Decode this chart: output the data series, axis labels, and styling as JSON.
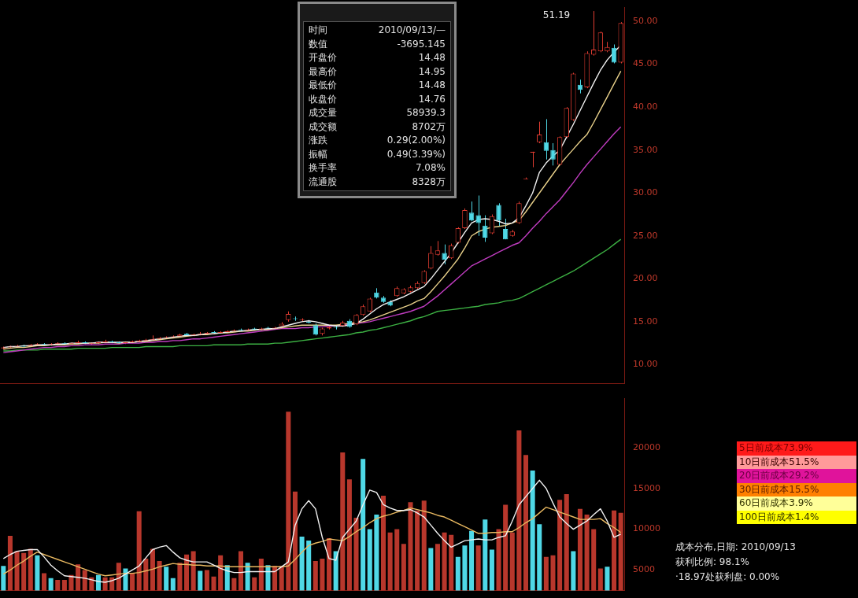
{
  "chart_data": [
    {
      "type": "candlestick",
      "categories": [
        null,
        null,
        null,
        null,
        null,
        null,
        null,
        null,
        null,
        null,
        null,
        null,
        null,
        null,
        null,
        null,
        null,
        null,
        null,
        null,
        null,
        null,
        null,
        null,
        null,
        null,
        null,
        null,
        null,
        null,
        null,
        null,
        null,
        null,
        null,
        null,
        null,
        null,
        null,
        null,
        null,
        null,
        null,
        null,
        null,
        null,
        null,
        null,
        null,
        null,
        null,
        null,
        null,
        null,
        null,
        null,
        null,
        null,
        null,
        null,
        null,
        null,
        null,
        null,
        null,
        null,
        null,
        null,
        null,
        null,
        null,
        null,
        null,
        null,
        null,
        null,
        null,
        null,
        null,
        null,
        null,
        null,
        null,
        null,
        null,
        null,
        null,
        null,
        null,
        null,
        null,
        null
      ],
      "ohlc": [
        [
          11.9,
          12.1,
          11.8,
          12.0
        ],
        [
          12.0,
          12.2,
          11.9,
          12.1
        ],
        [
          12.1,
          12.3,
          12.0,
          12.2
        ],
        [
          12.2,
          12.3,
          12.0,
          12.1
        ],
        [
          12.2,
          12.4,
          12.1,
          12.3
        ],
        [
          12.3,
          12.5,
          12.2,
          12.4
        ],
        [
          12.4,
          12.5,
          12.2,
          12.3
        ],
        [
          12.3,
          12.5,
          12.2,
          12.4
        ],
        [
          12.4,
          12.6,
          12.3,
          12.5
        ],
        [
          12.5,
          12.6,
          12.3,
          12.4
        ],
        [
          12.4,
          12.6,
          12.3,
          12.5
        ],
        [
          12.5,
          12.8,
          12.4,
          12.6
        ],
        [
          12.6,
          12.7,
          12.4,
          12.5
        ],
        [
          12.4,
          12.6,
          12.3,
          12.5
        ],
        [
          12.5,
          12.7,
          12.4,
          12.6
        ],
        [
          12.6,
          12.9,
          12.5,
          12.7
        ],
        [
          12.7,
          12.8,
          12.5,
          12.6
        ],
        [
          12.6,
          12.7,
          12.4,
          12.5
        ],
        [
          12.5,
          12.7,
          12.4,
          12.6
        ],
        [
          12.6,
          12.8,
          12.5,
          12.7
        ],
        [
          12.7,
          12.9,
          12.6,
          12.8
        ],
        [
          12.8,
          13.0,
          12.7,
          12.9
        ],
        [
          12.9,
          13.4,
          12.8,
          13.0
        ],
        [
          13.0,
          13.2,
          12.9,
          13.1
        ],
        [
          13.1,
          13.3,
          13.0,
          13.2
        ],
        [
          13.2,
          13.4,
          13.1,
          13.3
        ],
        [
          13.3,
          13.6,
          13.2,
          13.5
        ],
        [
          13.6,
          13.7,
          13.3,
          13.4
        ],
        [
          13.4,
          13.6,
          13.3,
          13.5
        ],
        [
          13.5,
          13.8,
          13.4,
          13.6
        ],
        [
          13.6,
          13.8,
          13.5,
          13.7
        ],
        [
          13.8,
          13.9,
          13.6,
          13.7
        ],
        [
          13.7,
          13.9,
          13.6,
          13.8
        ],
        [
          13.8,
          14.0,
          13.7,
          13.9
        ],
        [
          13.9,
          14.1,
          13.8,
          14.0
        ],
        [
          14.1,
          14.2,
          13.9,
          14.0
        ],
        [
          14.0,
          14.2,
          13.9,
          14.1
        ],
        [
          14.2,
          14.3,
          14.0,
          14.1
        ],
        [
          14.1,
          14.3,
          14.0,
          14.2
        ],
        [
          14.3,
          14.4,
          14.1,
          14.2
        ],
        [
          14.2,
          14.4,
          14.1,
          14.3
        ],
        [
          14.48,
          14.95,
          14.48,
          14.76
        ],
        [
          15.2,
          16.2,
          15.0,
          15.9
        ],
        [
          15.4,
          15.6,
          15.1,
          15.3
        ],
        [
          15.2,
          15.4,
          15.0,
          15.2
        ],
        [
          15.0,
          15.2,
          14.8,
          14.9
        ],
        [
          14.6,
          14.8,
          13.4,
          13.5
        ],
        [
          13.6,
          14.3,
          13.4,
          14.2
        ],
        [
          14.2,
          14.6,
          14.1,
          14.4
        ],
        [
          14.4,
          14.5,
          14.1,
          14.3
        ],
        [
          14.5,
          15.1,
          14.4,
          14.9
        ],
        [
          15.1,
          15.3,
          14.3,
          14.4
        ],
        [
          14.7,
          15.9,
          14.6,
          15.8
        ],
        [
          15.8,
          17.0,
          15.7,
          16.8
        ],
        [
          16.2,
          17.8,
          16.1,
          17.7
        ],
        [
          18.4,
          18.9,
          17.7,
          17.8
        ],
        [
          17.8,
          18.0,
          17.2,
          17.3
        ],
        [
          17.3,
          17.5,
          16.8,
          16.9
        ],
        [
          18.0,
          19.1,
          17.9,
          18.9
        ],
        [
          18.3,
          18.9,
          18.2,
          18.8
        ],
        [
          18.5,
          19.2,
          18.4,
          19.0
        ],
        [
          18.9,
          19.7,
          18.8,
          19.5
        ],
        [
          19.5,
          21.0,
          19.4,
          20.9
        ],
        [
          21.2,
          23.8,
          21.1,
          23.0
        ],
        [
          22.8,
          24.4,
          22.7,
          23.3
        ],
        [
          23.0,
          24.0,
          21.7,
          22.2
        ],
        [
          22.4,
          24.1,
          22.3,
          23.9
        ],
        [
          24.2,
          26.0,
          24.1,
          25.9
        ],
        [
          25.9,
          28.2,
          25.8,
          28.0
        ],
        [
          27.7,
          29.0,
          26.7,
          26.8
        ],
        [
          27.4,
          29.7,
          25.0,
          26.5
        ],
        [
          26.2,
          27.4,
          24.3,
          24.8
        ],
        [
          25.3,
          27.5,
          25.2,
          27.3
        ],
        [
          28.6,
          28.8,
          26.1,
          26.8
        ],
        [
          25.8,
          27.0,
          24.6,
          24.6
        ],
        [
          25.0,
          25.7,
          24.9,
          25.5
        ],
        [
          26.5,
          29.0,
          26.4,
          28.8
        ],
        [
          31.6,
          31.8,
          31.6,
          31.7
        ],
        [
          34.7,
          34.8,
          33.0,
          34.8
        ],
        [
          35.9,
          38.3,
          35.8,
          36.8
        ],
        [
          35.9,
          38.6,
          33.9,
          34.9
        ],
        [
          35.0,
          35.8,
          33.2,
          33.9
        ],
        [
          33.3,
          36.6,
          33.2,
          36.5
        ],
        [
          36.5,
          40.0,
          36.4,
          39.9
        ],
        [
          38.5,
          44.0,
          38.4,
          43.9
        ],
        [
          42.6,
          43.2,
          41.6,
          42.0
        ],
        [
          42.3,
          46.5,
          42.2,
          46.3
        ],
        [
          46.1,
          51.19,
          46.0,
          46.7
        ],
        [
          46.5,
          48.8,
          46.4,
          48.7
        ],
        [
          46.5,
          47.6,
          46.4,
          47.0
        ],
        [
          46.9,
          47.3,
          45.1,
          45.2
        ],
        [
          45.2,
          49.9,
          45.1,
          49.8
        ]
      ],
      "colors": [
        "#e03c31",
        "#e03c31",
        "#e03c31",
        "#4fd8e6",
        "#e03c31",
        "#e03c31",
        "#4fd8e6",
        "#e03c31",
        "#e03c31",
        "#4fd8e6",
        "#e03c31",
        "#e03c31",
        "#4fd8e6",
        "#e03c31",
        "#e03c31",
        "#e03c31",
        "#4fd8e6",
        "#4fd8e6",
        "#e03c31",
        "#e03c31",
        "#e03c31",
        "#e03c31",
        "#e03c31",
        "#e03c31",
        "#e03c31",
        "#e03c31",
        "#e03c31",
        "#4fd8e6",
        "#e03c31",
        "#e03c31",
        "#e03c31",
        "#4fd8e6",
        "#e03c31",
        "#e03c31",
        "#e03c31",
        "#4fd8e6",
        "#e03c31",
        "#4fd8e6",
        "#e03c31",
        "#4fd8e6",
        "#e03c31",
        "#e03c31",
        "#e03c31",
        "#4fd8e6",
        "#e03c31",
        "#4fd8e6",
        "#4fd8e6",
        "#e03c31",
        "#e03c31",
        "#4fd8e6",
        "#e03c31",
        "#4fd8e6",
        "#e03c31",
        "#e03c31",
        "#e03c31",
        "#4fd8e6",
        "#4fd8e6",
        "#4fd8e6",
        "#e03c31",
        "#e03c31",
        "#e03c31",
        "#e03c31",
        "#e03c31",
        "#e03c31",
        "#e03c31",
        "#4fd8e6",
        "#e03c31",
        "#e03c31",
        "#e03c31",
        "#4fd8e6",
        "#4fd8e6",
        "#4fd8e6",
        "#e03c31",
        "#4fd8e6",
        "#4fd8e6",
        "#e03c31",
        "#e03c31",
        "#e03c31",
        "#e03c31",
        "#e03c31",
        "#4fd8e6",
        "#4fd8e6",
        "#e03c31",
        "#e03c31",
        "#e03c31",
        "#4fd8e6",
        "#e03c31",
        "#e03c31",
        "#e03c31",
        "#e03c31",
        "#4fd8e6",
        "#e03c31"
      ],
      "series": [
        {
          "type": "line",
          "color": "#f0f0f0",
          "values": [
            12.0,
            12.1,
            12.1,
            12.2,
            12.2,
            12.3,
            12.3,
            12.3,
            12.4,
            12.4,
            12.5,
            12.5,
            12.5,
            12.5,
            12.6,
            12.6,
            12.6,
            12.6,
            12.6,
            12.6,
            12.7,
            12.8,
            12.9,
            13.0,
            13.1,
            13.2,
            13.3,
            13.4,
            13.4,
            13.5,
            13.6,
            13.6,
            13.7,
            13.8,
            13.9,
            13.9,
            14.0,
            14.1,
            14.1,
            14.2,
            14.2,
            14.4,
            14.6,
            14.8,
            15.0,
            15.1,
            15.0,
            14.8,
            14.6,
            14.5,
            14.5,
            14.6,
            14.8,
            15.3,
            15.9,
            16.5,
            17.0,
            17.3,
            17.6,
            17.9,
            18.3,
            18.7,
            19.1,
            20.0,
            21.0,
            22.0,
            23.0,
            24.2,
            25.4,
            26.5,
            26.9,
            27.0,
            26.9,
            26.7,
            26.4,
            26.5,
            27.1,
            28.5,
            30.0,
            32.4,
            33.5,
            34.3,
            35.0,
            36.5,
            38.0,
            39.6,
            41.2,
            42.8,
            44.3,
            45.5,
            46.4,
            47.2
          ]
        },
        {
          "type": "line",
          "color": "#e8d08a",
          "values": [
            11.8,
            11.9,
            12.0,
            12.0,
            12.1,
            12.2,
            12.2,
            12.3,
            12.3,
            12.3,
            12.4,
            12.4,
            12.5,
            12.5,
            12.5,
            12.6,
            12.6,
            12.5,
            12.6,
            12.6,
            12.7,
            12.7,
            12.8,
            12.9,
            13.0,
            13.1,
            13.2,
            13.3,
            13.4,
            13.5,
            13.5,
            13.6,
            13.7,
            13.7,
            13.8,
            13.9,
            13.9,
            14.0,
            14.1,
            14.1,
            14.2,
            14.3,
            14.4,
            14.5,
            14.6,
            14.6,
            14.6,
            14.6,
            14.6,
            14.6,
            14.7,
            14.8,
            14.9,
            15.0,
            15.2,
            15.5,
            15.8,
            16.1,
            16.4,
            16.7,
            17.0,
            17.4,
            17.7,
            18.5,
            19.4,
            20.3,
            21.3,
            22.3,
            23.6,
            25.0,
            25.5,
            25.8,
            26.0,
            26.1,
            26.2,
            26.5,
            26.8,
            27.8,
            28.9,
            30.0,
            31.1,
            32.2,
            33.3,
            34.2,
            35.1,
            36.0,
            36.8,
            38.2,
            39.7,
            41.2,
            42.7,
            44.2
          ]
        },
        {
          "type": "line",
          "color": "#c03cc0",
          "values": [
            11.4,
            11.5,
            11.6,
            11.7,
            11.8,
            11.9,
            12.0,
            12.0,
            12.1,
            12.1,
            12.2,
            12.2,
            12.3,
            12.3,
            12.3,
            12.4,
            12.4,
            12.4,
            12.5,
            12.5,
            12.5,
            12.6,
            12.6,
            12.7,
            12.7,
            12.8,
            12.8,
            12.9,
            13.0,
            13.0,
            13.1,
            13.2,
            13.3,
            13.4,
            13.5,
            13.6,
            13.7,
            13.8,
            13.9,
            14.0,
            14.1,
            14.2,
            14.2,
            14.2,
            14.3,
            14.3,
            14.4,
            14.4,
            14.5,
            14.5,
            14.6,
            14.7,
            14.8,
            14.9,
            15.0,
            15.2,
            15.4,
            15.6,
            15.8,
            16.0,
            16.2,
            16.5,
            16.8,
            17.4,
            18.0,
            18.7,
            19.4,
            20.1,
            20.8,
            21.5,
            21.9,
            22.3,
            22.7,
            23.1,
            23.5,
            23.9,
            24.2,
            25.0,
            25.9,
            26.7,
            27.6,
            28.4,
            29.2,
            30.2,
            31.2,
            32.3,
            33.3,
            34.2,
            35.1,
            36.0,
            36.9,
            37.7
          ]
        },
        {
          "type": "line",
          "color": "#3cb043",
          "values": [
            11.6,
            11.6,
            11.7,
            11.7,
            11.7,
            11.7,
            11.8,
            11.8,
            11.8,
            11.8,
            11.8,
            11.9,
            11.9,
            11.9,
            11.9,
            11.9,
            12.0,
            12.0,
            12.0,
            12.0,
            12.0,
            12.1,
            12.1,
            12.1,
            12.1,
            12.1,
            12.2,
            12.2,
            12.2,
            12.2,
            12.2,
            12.3,
            12.3,
            12.3,
            12.3,
            12.3,
            12.4,
            12.4,
            12.4,
            12.4,
            12.5,
            12.5,
            12.6,
            12.7,
            12.8,
            12.9,
            13.0,
            13.1,
            13.2,
            13.3,
            13.4,
            13.5,
            13.7,
            13.8,
            14.0,
            14.1,
            14.3,
            14.5,
            14.7,
            14.9,
            15.1,
            15.4,
            15.6,
            15.9,
            16.2,
            16.3,
            16.4,
            16.5,
            16.6,
            16.7,
            16.8,
            17.0,
            17.1,
            17.2,
            17.4,
            17.5,
            17.7,
            18.1,
            18.5,
            18.9,
            19.3,
            19.7,
            20.1,
            20.5,
            20.9,
            21.4,
            21.9,
            22.4,
            22.9,
            23.4,
            24.0,
            24.6
          ]
        }
      ],
      "ylim": [
        7.8,
        51.6
      ],
      "yticks": [
        {
          "value": 10,
          "label": "10.00"
        },
        {
          "value": 15,
          "label": "15.00"
        },
        {
          "value": 20,
          "label": "20.00"
        },
        {
          "value": 25,
          "label": "25.00"
        },
        {
          "value": 30,
          "label": "30.00"
        },
        {
          "value": 35,
          "label": "35.00"
        },
        {
          "value": 40,
          "label": "40.00"
        },
        {
          "value": 45,
          "label": "45.00"
        },
        {
          "value": 50,
          "label": "50.00"
        }
      ],
      "tick_labels": "y",
      "grid": false,
      "legend": false,
      "annotations": [
        "51.19",
        "时间 2010/09/13/—",
        "数值 -3695.145",
        "开盘价 14.48",
        "最高价 14.95",
        "最低价 14.48",
        "收盘价 14.76",
        "成交量 58939.3",
        "成交额 8702万",
        "涨跌 0.29(2.00%)",
        "振幅 0.49(3.39%)",
        "换手率 7.08%",
        "流通股 8328万"
      ]
    },
    {
      "type": "bar",
      "categories": [
        null,
        null,
        null,
        null,
        null,
        null,
        null,
        null,
        null,
        null,
        null,
        null,
        null,
        null,
        null,
        null,
        null,
        null,
        null,
        null,
        null,
        null,
        null,
        null,
        null,
        null,
        null,
        null,
        null,
        null,
        null,
        null,
        null,
        null,
        null,
        null,
        null,
        null,
        null,
        null,
        null,
        null,
        null,
        null,
        null,
        null,
        null,
        null,
        null,
        null,
        null,
        null,
        null,
        null,
        null,
        null,
        null,
        null,
        null,
        null,
        null,
        null,
        null,
        null,
        null,
        null,
        null,
        null,
        null,
        null,
        null,
        null,
        null,
        null,
        null,
        null,
        null,
        null,
        null,
        null,
        null,
        null,
        null,
        null,
        null,
        null,
        null,
        null,
        null,
        null,
        null,
        null
      ],
      "series": [
        {
          "type": "bar",
          "values": [
            5500,
            9200,
            7300,
            7100,
            7600,
            6800,
            4600,
            4000,
            3800,
            3800,
            4400,
            5700,
            5000,
            4100,
            4400,
            4100,
            4100,
            5900,
            5200,
            4600,
            12200,
            6400,
            7600,
            6100,
            5400,
            4000,
            5900,
            6900,
            7300,
            4900,
            5000,
            4200,
            6800,
            5600,
            4000,
            7300,
            5900,
            4100,
            6400,
            5600,
            5500,
            5500,
            24400,
            14600,
            9100,
            8600,
            6100,
            6400,
            8900,
            7300,
            19400,
            16100,
            11400,
            18600,
            10000,
            11800,
            14100,
            9600,
            10000,
            8200,
            13300,
            12300,
            13500,
            7700,
            8200,
            9600,
            9300,
            6600,
            8000,
            9800,
            8000,
            11200,
            7500,
            10000,
            13000,
            9600,
            22100,
            19100,
            17200,
            10600,
            6600,
            6800,
            13600,
            14300,
            7300,
            12500,
            11800,
            10000,
            5200,
            5400,
            12300,
            12000
          ],
          "colors": [
            "#4fd8e6",
            "#b8372c",
            "#b8372c",
            "#b8372c",
            "#b8372c",
            "#4fd8e6",
            "#b8372c",
            "#4fd8e6",
            "#b8372c",
            "#b8372c",
            "#b8372c",
            "#b8372c",
            "#b8372c",
            "#b8372c",
            "#4fd8e6",
            "#b8372c",
            "#b8372c",
            "#b8372c",
            "#4fd8e6",
            "#b8372c",
            "#b8372c",
            "#b8372c",
            "#b8372c",
            "#b8372c",
            "#4fd8e6",
            "#4fd8e6",
            "#b8372c",
            "#b8372c",
            "#b8372c",
            "#4fd8e6",
            "#b8372c",
            "#b8372c",
            "#b8372c",
            "#4fd8e6",
            "#b8372c",
            "#b8372c",
            "#4fd8e6",
            "#b8372c",
            "#b8372c",
            "#4fd8e6",
            "#b8372c",
            "#b8372c",
            "#b8372c",
            "#b8372c",
            "#4fd8e6",
            "#4fd8e6",
            "#b8372c",
            "#b8372c",
            "#b8372c",
            "#4fd8e6",
            "#b8372c",
            "#b8372c",
            "#b8372c",
            "#4fd8e6",
            "#4fd8e6",
            "#4fd8e6",
            "#b8372c",
            "#b8372c",
            "#b8372c",
            "#b8372c",
            "#b8372c",
            "#b8372c",
            "#b8372c",
            "#4fd8e6",
            "#b8372c",
            "#b8372c",
            "#b8372c",
            "#4fd8e6",
            "#4fd8e6",
            "#4fd8e6",
            "#b8372c",
            "#4fd8e6",
            "#4fd8e6",
            "#b8372c",
            "#b8372c",
            "#b8372c",
            "#b8372c",
            "#b8372c",
            "#4fd8e6",
            "#4fd8e6",
            "#b8372c",
            "#b8372c",
            "#b8372c",
            "#b8372c",
            "#4fd8e6",
            "#b8372c",
            "#b8372c",
            "#b8372c",
            "#b8372c",
            "#4fd8e6",
            "#b8372c",
            "#b8372c"
          ]
        },
        {
          "type": "line",
          "color": "#f0f0f0",
          "values": [
            6400,
            6900,
            7300,
            7400,
            7500,
            7500,
            6600,
            5600,
            4900,
            4300,
            4200,
            4100,
            4000,
            3800,
            3600,
            3500,
            3700,
            4000,
            4500,
            5000,
            5500,
            6500,
            7500,
            7800,
            8000,
            7200,
            6500,
            6200,
            6000,
            6000,
            6000,
            5600,
            5200,
            4900,
            4700,
            4700,
            4800,
            4800,
            4800,
            4800,
            4800,
            5400,
            6000,
            10500,
            12500,
            13500,
            12500,
            9000,
            6400,
            6200,
            9000,
            10000,
            11000,
            13000,
            14800,
            14500,
            13000,
            12600,
            12300,
            12300,
            12400,
            12000,
            11500,
            10500,
            9500,
            8600,
            7800,
            8200,
            8600,
            8700,
            8800,
            8700,
            8700,
            9000,
            9200,
            11000,
            13000,
            14000,
            15000,
            16000,
            15000,
            13200,
            11500,
            10700,
            10000,
            10500,
            11000,
            11800,
            12500,
            11000,
            9000,
            9400
          ]
        },
        {
          "type": "line",
          "color": "#e8b860",
          "values": [
            4500,
            5000,
            5600,
            6100,
            6700,
            7200,
            6900,
            6600,
            6300,
            6000,
            5700,
            5400,
            5100,
            4800,
            4500,
            4300,
            4400,
            4500,
            4600,
            4600,
            4700,
            4900,
            5100,
            5400,
            5600,
            5800,
            5700,
            5700,
            5600,
            5600,
            5500,
            5500,
            5500,
            5400,
            5400,
            5400,
            5400,
            5400,
            5400,
            5400,
            5400,
            5400,
            5500,
            6300,
            7200,
            8000,
            8300,
            8500,
            8800,
            8700,
            8600,
            9100,
            9700,
            10200,
            10800,
            11300,
            11600,
            11800,
            12100,
            12300,
            12600,
            12400,
            12200,
            12000,
            11700,
            11500,
            11100,
            10700,
            10300,
            9900,
            9500,
            9500,
            9600,
            9600,
            9700,
            9700,
            10200,
            10800,
            11300,
            12000,
            12700,
            12400,
            12100,
            11800,
            11500,
            11200,
            11200,
            11200,
            11300,
            10700,
            10200,
            9600
          ]
        }
      ],
      "ylim": [
        2500,
        26000
      ],
      "yticks": [
        5000,
        10000,
        15000,
        20000
      ],
      "tick_labels": "y",
      "grid": false,
      "legend": false,
      "annotations": [
        "5日前成本73.9%",
        "10日前成本51.5%",
        "20日前成本29.2%",
        "30日前成本15.5%",
        "60日前成本3.9%",
        "100日前成本1.4%",
        "成本分布,日期: 2010/09/13",
        "获利比例: 98.1%",
        "·18.97处获利盘: 0.00%"
      ]
    }
  ]
}
